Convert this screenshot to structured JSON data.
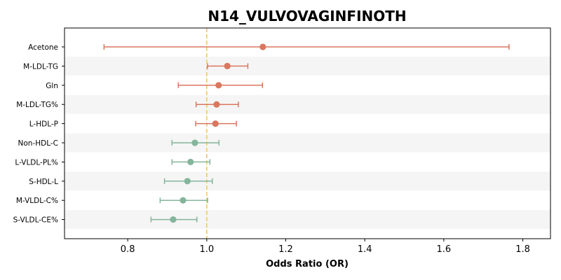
{
  "chart_data": {
    "type": "forest",
    "title": "N14_VULVOVAGINFINOTH",
    "xlabel": "Odds Ratio (OR)",
    "ylabel": "",
    "xlim": [
      0.64,
      1.87
    ],
    "xticks": [
      0.8,
      1.0,
      1.2,
      1.4,
      1.6,
      1.8
    ],
    "xtick_labels": [
      "0.8",
      "1.0",
      "1.2",
      "1.4",
      "1.6",
      "1.8"
    ],
    "reference_line": 1.0,
    "reference_line_style": "dashed",
    "grid": false,
    "row_banding": true,
    "colors": {
      "positive": "#d9775f",
      "negative": "#84b59b",
      "reference": "#f2c47e",
      "band": "#f5f5f5"
    },
    "rows": [
      {
        "label": "Acetone",
        "or": 1.142,
        "lo": 0.74,
        "hi": 1.765
      },
      {
        "label": "M-LDL-TG",
        "or": 1.052,
        "lo": 1.002,
        "hi": 1.104
      },
      {
        "label": "Gln",
        "or": 1.03,
        "lo": 0.928,
        "hi": 1.141
      },
      {
        "label": "M-LDL-TG%",
        "or": 1.025,
        "lo": 0.973,
        "hi": 1.08
      },
      {
        "label": "L-HDL-P",
        "or": 1.022,
        "lo": 0.972,
        "hi": 1.075
      },
      {
        "label": "Non-HDL-C",
        "or": 0.97,
        "lo": 0.912,
        "hi": 1.031
      },
      {
        "label": "L-VLDL-PL%",
        "or": 0.959,
        "lo": 0.912,
        "hi": 1.008
      },
      {
        "label": "S-HDL-L",
        "or": 0.951,
        "lo": 0.893,
        "hi": 1.014
      },
      {
        "label": "M-VLDL-C%",
        "or": 0.94,
        "lo": 0.882,
        "hi": 1.002
      },
      {
        "label": "S-VLDL-CE%",
        "or": 0.915,
        "lo": 0.859,
        "hi": 0.975
      }
    ]
  }
}
